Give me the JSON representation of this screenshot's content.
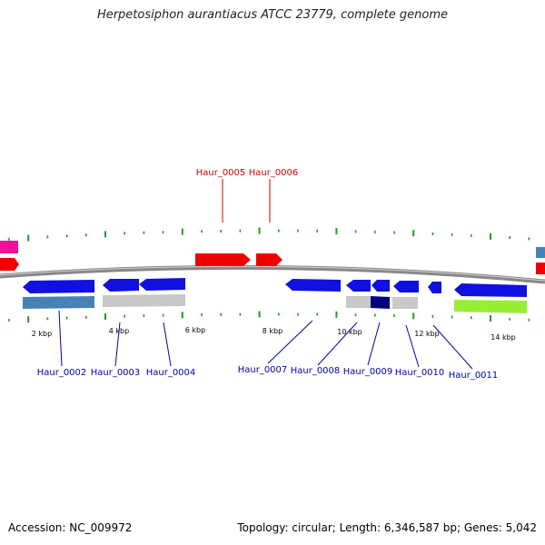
{
  "title": "Herpetosiphon aurantiacus ATCC 23779, complete genome",
  "accession_text": "Accession: NC_009972",
  "summary_text": "Topology: circular; Length: 6,346,587 bp; Genes: 5,042",
  "colors": {
    "forward_gene": "#ee0000",
    "reverse_gene": "#1010e0",
    "dark_gene": "#000080",
    "steelblue_gene": "#4682b4",
    "gray_gene": "#c8c8c8",
    "lime_gene": "#99ee33",
    "magenta_gene": "#ee1199",
    "label_forward": "#cc0000",
    "label_reverse": "#0000aa",
    "tick": "#229922",
    "backbone": "#777777"
  },
  "kbp_ticks": [
    "2 kbp",
    "4 kbp",
    "6 kbp",
    "8 kbp",
    "10 kbp",
    "12 kbp",
    "14 kbp"
  ],
  "labels_top": [
    {
      "id": "Haur_0005",
      "text": "Haur_0005"
    },
    {
      "id": "Haur_0006",
      "text": "Haur_0006"
    }
  ],
  "labels_bottom": [
    {
      "id": "Haur_0002",
      "text": "Haur_0002"
    },
    {
      "id": "Haur_0003",
      "text": "Haur_0003"
    },
    {
      "id": "Haur_0004",
      "text": "Haur_0004"
    },
    {
      "id": "Haur_0007",
      "text": "Haur_0007"
    },
    {
      "id": "Haur_0008",
      "text": "Haur_0008"
    },
    {
      "id": "Haur_0009",
      "text": "Haur_0009"
    },
    {
      "id": "Haur_0010",
      "text": "Haur_0010"
    },
    {
      "id": "Haur_0011",
      "text": "Haur_0011"
    }
  ]
}
